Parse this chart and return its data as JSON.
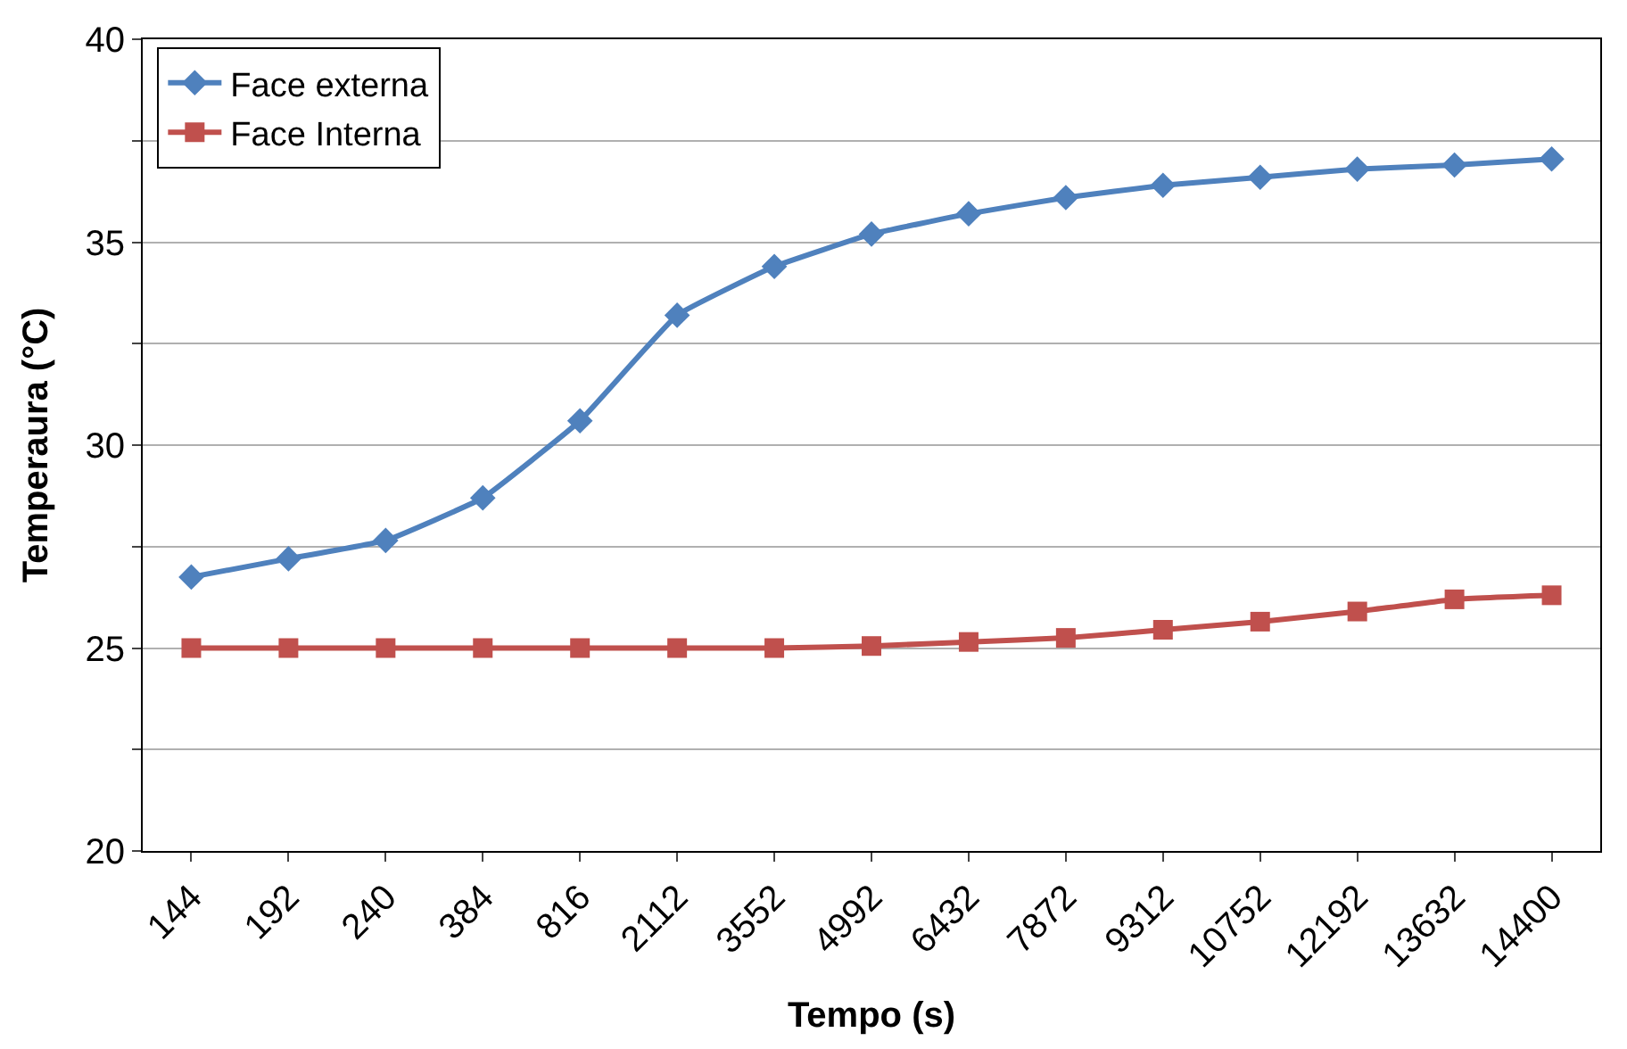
{
  "chart_data": {
    "type": "line",
    "xlabel": "Tempo (s)",
    "ylabel": "Temperaura (°C)",
    "categories": [
      "144",
      "192",
      "240",
      "384",
      "816",
      "2112",
      "3552",
      "4992",
      "6432",
      "7872",
      "9312",
      "10752",
      "12192",
      "13632",
      "14400"
    ],
    "series": [
      {
        "name": "Face externa",
        "color": "#4f81bd",
        "marker": "diamond",
        "values": [
          26.75,
          27.2,
          27.65,
          28.7,
          30.6,
          33.2,
          34.4,
          35.2,
          35.7,
          36.1,
          36.4,
          36.6,
          36.8,
          36.9,
          37.05
        ]
      },
      {
        "name": "Face Interna",
        "color": "#c0504d",
        "marker": "square",
        "values": [
          25.0,
          25.0,
          25.0,
          25.0,
          25.0,
          25.0,
          25.0,
          25.05,
          25.15,
          25.25,
          25.45,
          25.65,
          25.9,
          26.2,
          26.3
        ]
      }
    ],
    "ylim": [
      20,
      40
    ],
    "yticks": [
      20,
      {
        "value": 22.5,
        "label": null
      },
      25,
      {
        "value": 27.5,
        "label": null
      },
      30,
      {
        "value": 32.5,
        "label": null
      },
      35,
      {
        "value": 37.5,
        "label": null
      },
      40
    ],
    "grid": "y",
    "legend": "top left",
    "line_style": "solid"
  }
}
